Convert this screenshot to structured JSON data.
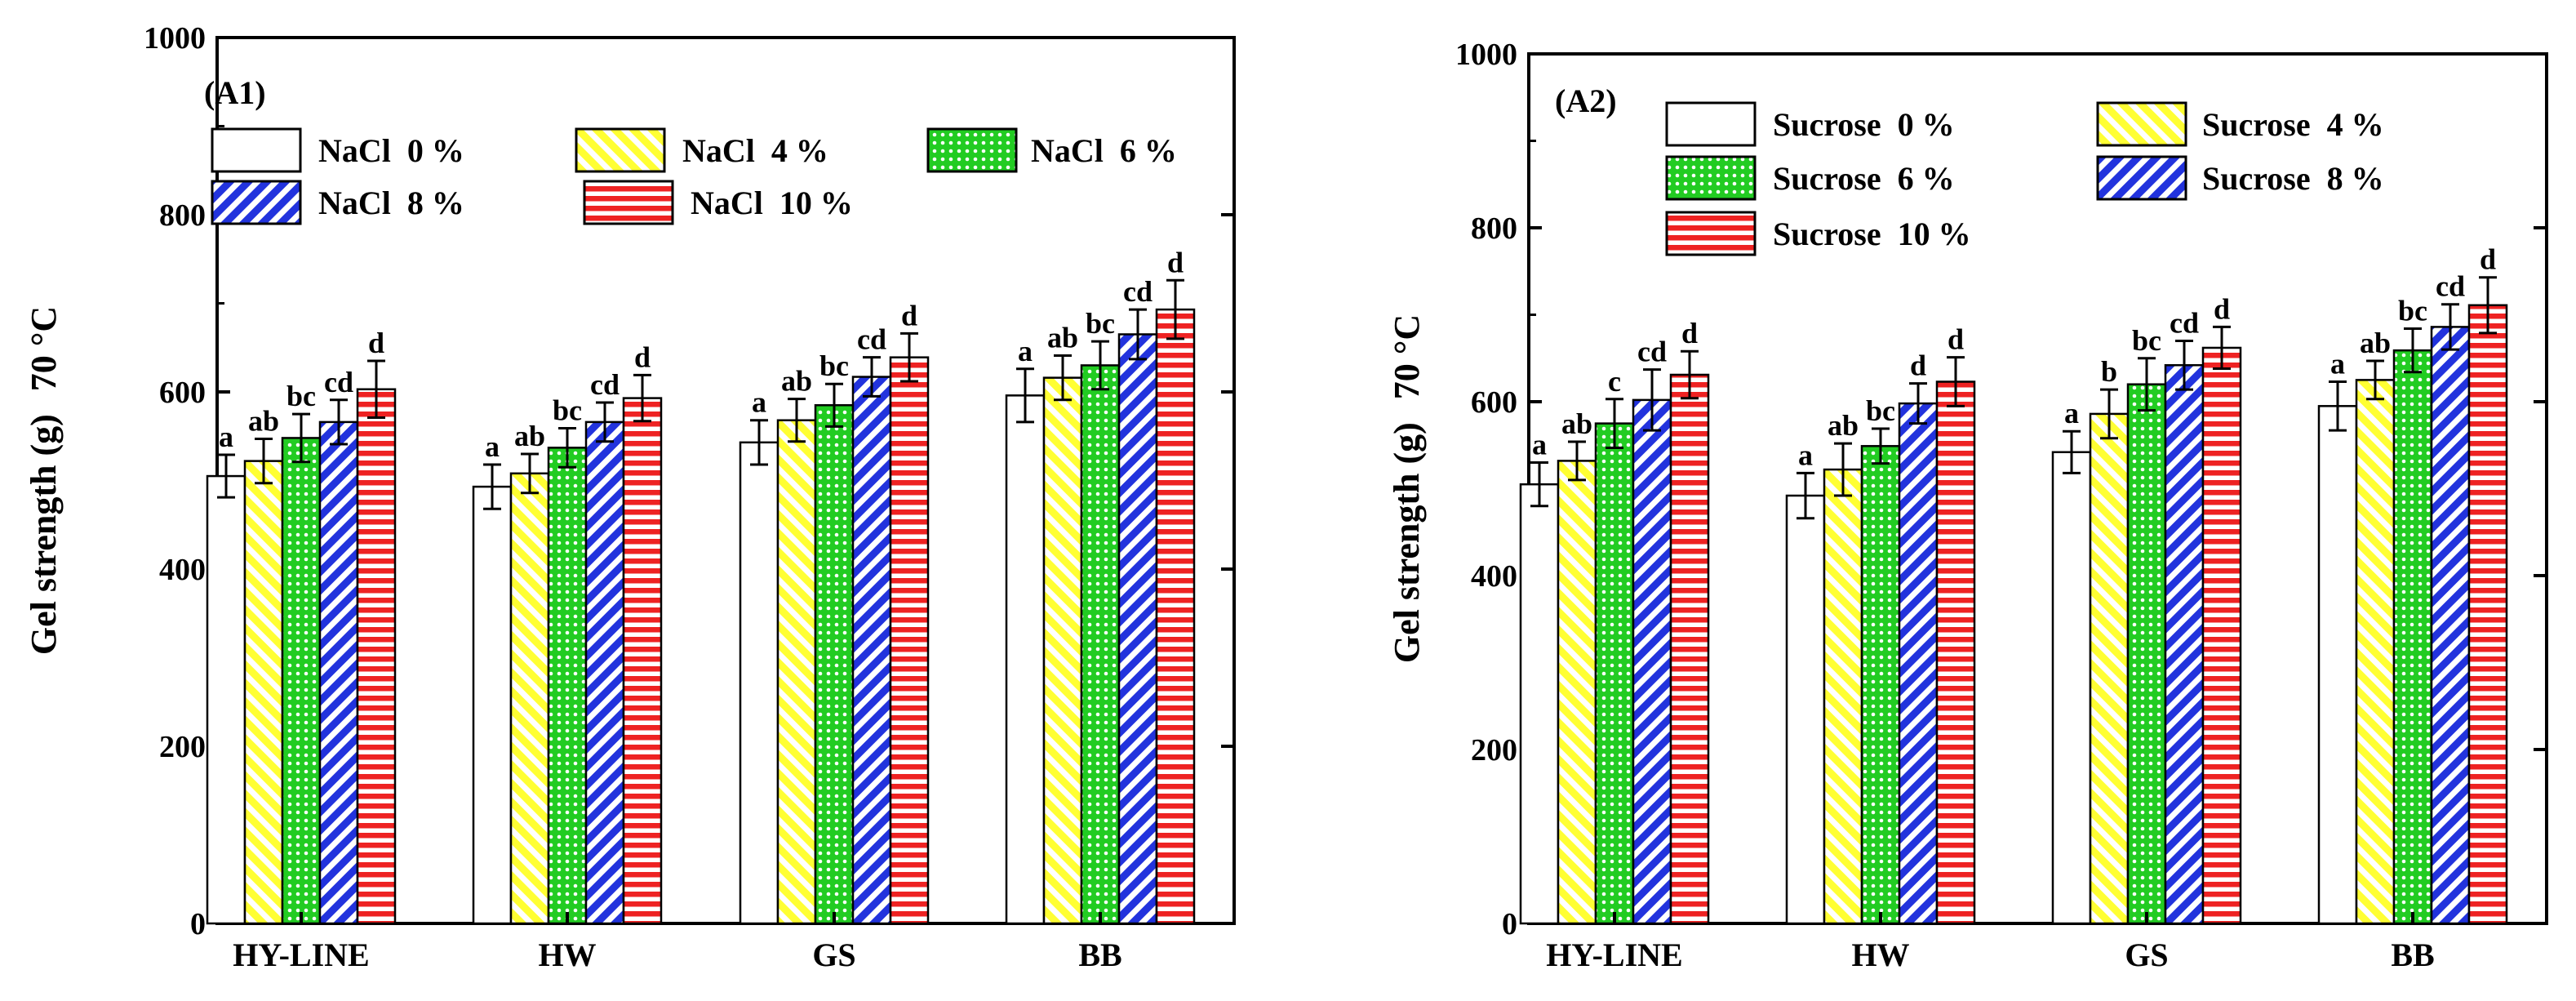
{
  "colors": {
    "nacl_0": "#ffffff",
    "nacl_4": "#ffff33",
    "nacl_6": "#22cc22",
    "nacl_8": "#2233dd",
    "nacl_10": "#ee2222",
    "sucrose_0": "#ffffff",
    "sucrose_4": "#ffff33",
    "sucrose_6": "#22cc22",
    "sucrose_8": "#2233dd",
    "sucrose_10": "#ee2222"
  },
  "chart_data": [
    {
      "type": "bar",
      "panel_label": "(A1)",
      "ylabel": "Gel strength (g)",
      "ylabel_suffix": "70 °C",
      "xlabel": "",
      "ylim": [
        0,
        1000
      ],
      "yticks": [
        0,
        200,
        400,
        600,
        800,
        1000
      ],
      "categories": [
        "HY-LINE",
        "HW",
        "GS",
        "BB"
      ],
      "legend_placement": "top-left",
      "series": [
        {
          "name": "NaCl  0 %",
          "pattern": "none",
          "values": [
            505,
            493,
            543,
            596
          ],
          "errors": [
            24,
            25,
            25,
            30
          ],
          "labels": [
            "a",
            "a",
            "a",
            "a"
          ]
        },
        {
          "name": "NaCl  4 %",
          "pattern": "back-diagonal",
          "values": [
            522,
            508,
            568,
            616
          ],
          "errors": [
            25,
            22,
            24,
            25
          ],
          "labels": [
            "ab",
            "ab",
            "ab",
            "ab"
          ]
        },
        {
          "name": "NaCl  6 %",
          "pattern": "dots",
          "values": [
            548,
            537,
            585,
            630
          ],
          "errors": [
            27,
            22,
            24,
            27
          ],
          "labels": [
            "bc",
            "bc",
            "bc",
            "bc"
          ]
        },
        {
          "name": "NaCl  8 %",
          "pattern": "forward-diagonal",
          "values": [
            566,
            566,
            617,
            665
          ],
          "errors": [
            25,
            22,
            22,
            28
          ],
          "labels": [
            "cd",
            "cd",
            "cd",
            "cd"
          ]
        },
        {
          "name": "NaCl  10 %",
          "pattern": "horizontal",
          "values": [
            603,
            593,
            639,
            693
          ],
          "errors": [
            32,
            26,
            27,
            33
          ],
          "labels": [
            "d",
            "d",
            "d",
            "d"
          ]
        }
      ]
    },
    {
      "type": "bar",
      "panel_label": "(A2)",
      "ylabel": "Gel strength (g)",
      "ylabel_suffix": "70 °C",
      "xlabel": "",
      "ylim": [
        0,
        1000
      ],
      "yticks": [
        0,
        200,
        400,
        600,
        800,
        1000
      ],
      "categories": [
        "HY-LINE",
        "HW",
        "GS",
        "BB"
      ],
      "legend_placement": "top-left",
      "series": [
        {
          "name": "Sucrose  0 %",
          "pattern": "none",
          "values": [
            505,
            492,
            542,
            595
          ],
          "errors": [
            25,
            26,
            24,
            28
          ],
          "labels": [
            "a",
            "a",
            "a",
            "a"
          ]
        },
        {
          "name": "Sucrose  4 %",
          "pattern": "back-diagonal",
          "values": [
            532,
            522,
            586,
            625
          ],
          "errors": [
            22,
            30,
            28,
            22
          ],
          "labels": [
            "ab",
            "ab",
            "b",
            "ab"
          ]
        },
        {
          "name": "Sucrose  6 %",
          "pattern": "dots",
          "values": [
            575,
            549,
            620,
            659
          ],
          "errors": [
            28,
            20,
            30,
            25
          ],
          "labels": [
            "c",
            "bc",
            "bc",
            "bc"
          ]
        },
        {
          "name": "Sucrose  8 %",
          "pattern": "forward-diagonal",
          "values": [
            602,
            598,
            642,
            686
          ],
          "errors": [
            35,
            23,
            28,
            26
          ],
          "labels": [
            "cd",
            "d",
            "cd",
            "cd"
          ]
        },
        {
          "name": "Sucrose  10 %",
          "pattern": "horizontal",
          "values": [
            631,
            623,
            662,
            711
          ],
          "errors": [
            27,
            28,
            24,
            32
          ],
          "labels": [
            "d",
            "d",
            "d",
            "d"
          ]
        }
      ]
    }
  ]
}
